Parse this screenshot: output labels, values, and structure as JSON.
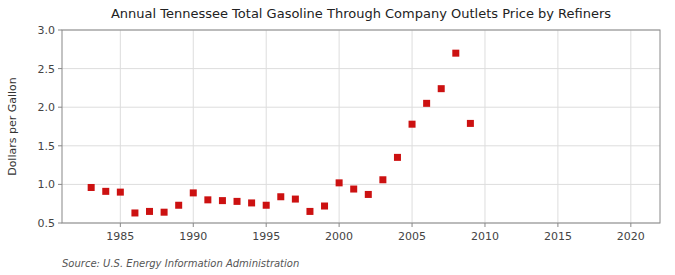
{
  "chart_data": {
    "type": "scatter",
    "title": "Annual Tennessee Total Gasoline Through Company Outlets Price by Refiners",
    "ylabel": "Dollars per Gallon",
    "source": "Source: U.S. Energy Information Administration",
    "x": [
      1983,
      1984,
      1985,
      1986,
      1987,
      1988,
      1989,
      1990,
      1991,
      1992,
      1993,
      1994,
      1995,
      1996,
      1997,
      1998,
      1999,
      2000,
      2001,
      2002,
      2003,
      2004,
      2005,
      2006,
      2007,
      2008,
      2009
    ],
    "values": [
      0.96,
      0.91,
      0.9,
      0.63,
      0.65,
      0.64,
      0.73,
      0.89,
      0.8,
      0.79,
      0.78,
      0.76,
      0.73,
      0.84,
      0.81,
      0.65,
      0.72,
      1.02,
      0.94,
      0.87,
      1.06,
      1.35,
      1.78,
      2.05,
      2.24,
      2.7,
      1.79
    ],
    "color": "#cc1111",
    "marker": "square",
    "xlim": [
      1981,
      2022
    ],
    "ylim": [
      0.5,
      3.0
    ],
    "xticks": [
      1985,
      1990,
      1995,
      2000,
      2005,
      2010,
      2015,
      2020
    ],
    "yticks": [
      0.5,
      {
        "value": 1,
        "label": "1.0"
      },
      1.5,
      {
        "value": 2,
        "label": "2.0"
      },
      2.5,
      {
        "value": 3,
        "label": "3.0"
      }
    ],
    "grid": true
  }
}
